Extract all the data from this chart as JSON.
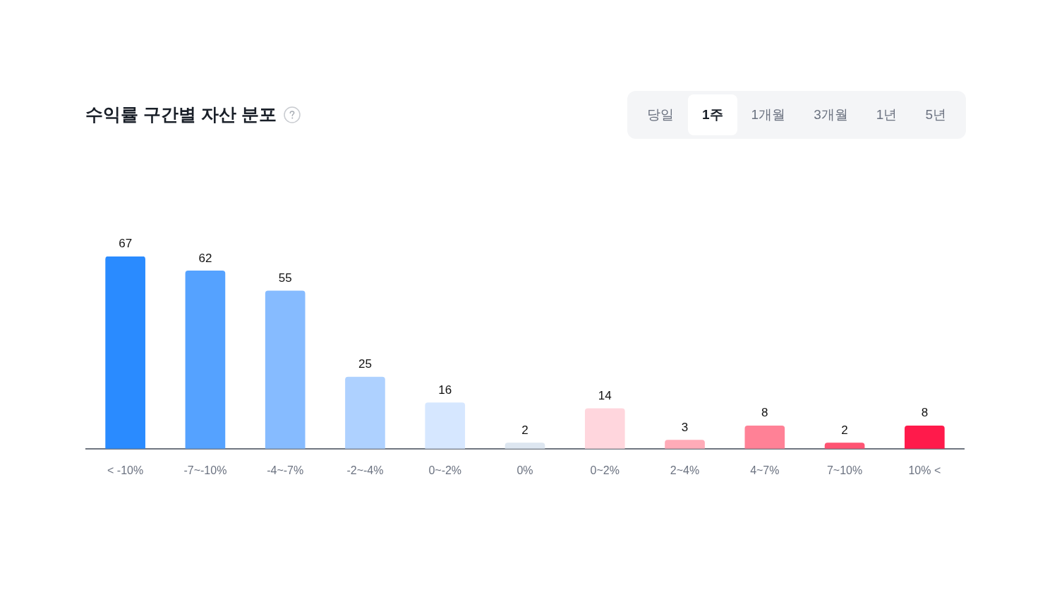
{
  "chart_data": {
    "type": "bar",
    "title": "수익률 구간별 자산 분포",
    "categories": [
      "< -10%",
      "-7~-10%",
      "-4~-7%",
      "-2~-4%",
      "0~-2%",
      "0%",
      "0~2%",
      "2~4%",
      "4~7%",
      "7~10%",
      "10% <"
    ],
    "values": [
      67,
      62,
      55,
      25,
      16,
      2,
      14,
      3,
      8,
      2,
      8
    ],
    "colors": [
      "#2a8bff",
      "#55a2ff",
      "#86bbff",
      "#aed1ff",
      "#d6e7ff",
      "#dde6f0",
      "#ffd6dd",
      "#ffabb8",
      "#ff8196",
      "#ff5473",
      "#ff1a4b"
    ],
    "data_labels": true,
    "grid": false,
    "legend": false,
    "annotations": [
      "당일",
      "1주",
      "1개월",
      "3개월",
      "1년",
      "5년"
    ]
  }
}
